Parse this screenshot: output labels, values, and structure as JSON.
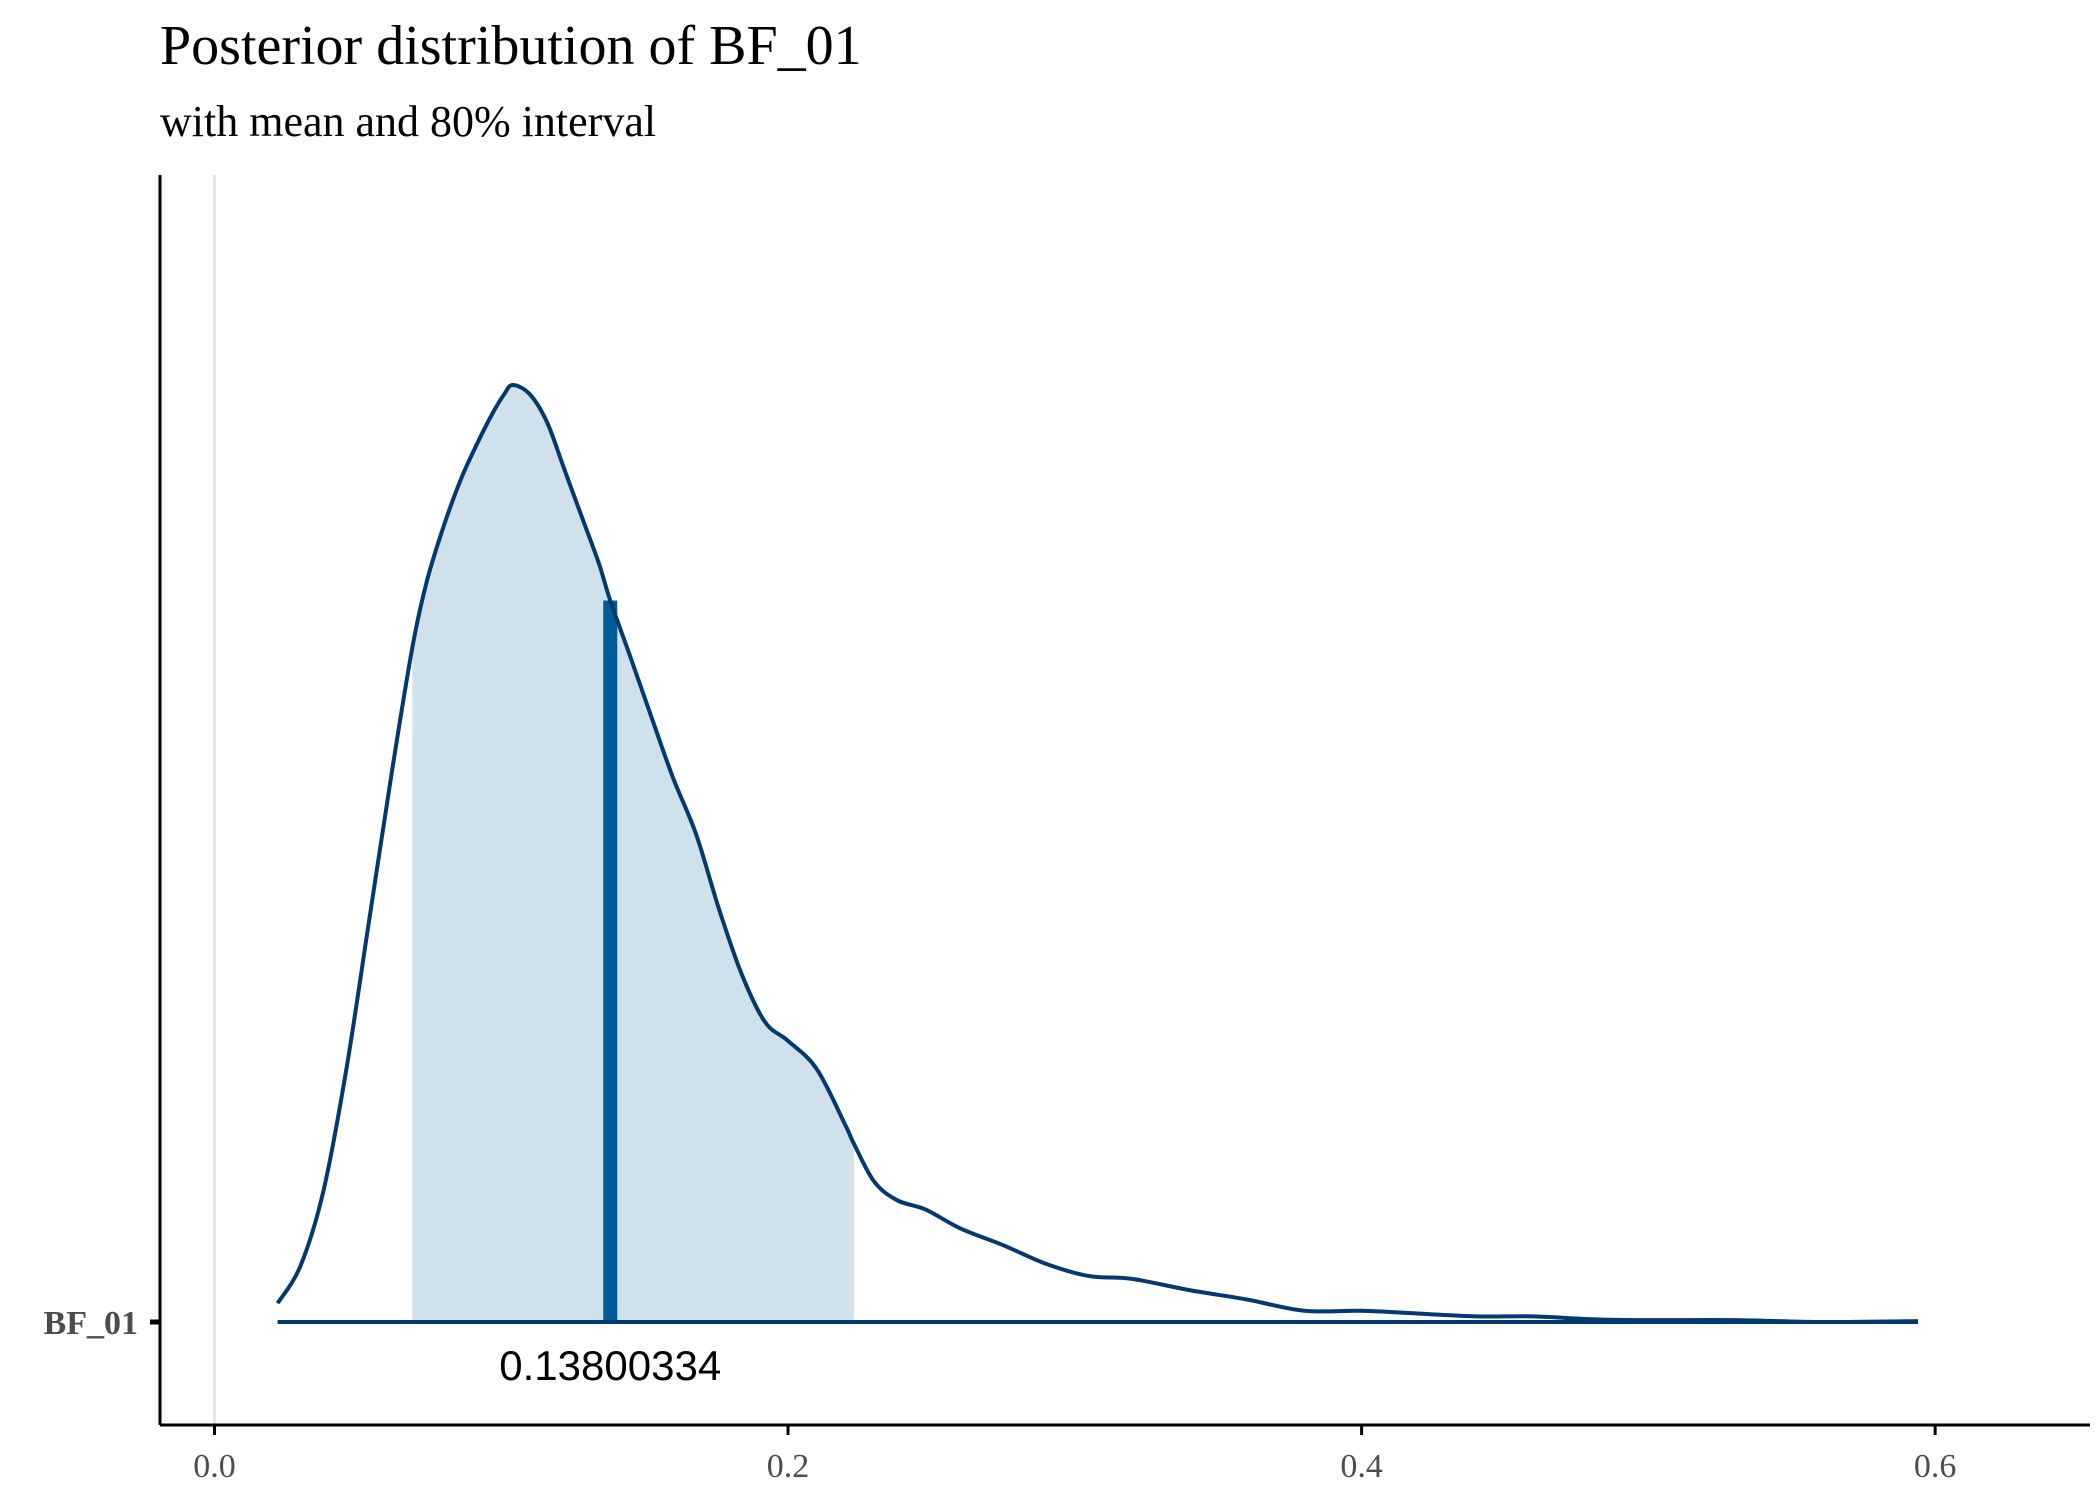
{
  "chart_data": {
    "type": "area",
    "title": "Posterior distribution of BF_01",
    "subtitle": "with mean and 80% interval",
    "xlabel": "",
    "ylabel": "",
    "x_ticks": [
      0.0,
      0.2,
      0.4,
      0.6
    ],
    "x_tick_labels": [
      "0.0",
      "0.2",
      "0.4",
      "0.6"
    ],
    "xlim": [
      -0.019,
      0.654
    ],
    "y_categories": [
      "BF_01"
    ],
    "vline_x": 0.0,
    "mean": 0.13800334,
    "mean_label": "0.13800334",
    "interval_level": 0.8,
    "interval": [
      0.069,
      0.223
    ],
    "density_range": [
      0.022,
      0.594
    ],
    "density_relative": [
      [
        0.022,
        0.02
      ],
      [
        0.03,
        0.06
      ],
      [
        0.038,
        0.14
      ],
      [
        0.046,
        0.27
      ],
      [
        0.054,
        0.43
      ],
      [
        0.062,
        0.59
      ],
      [
        0.069,
        0.72
      ],
      [
        0.074,
        0.79
      ],
      [
        0.08,
        0.85
      ],
      [
        0.086,
        0.9
      ],
      [
        0.092,
        0.94
      ],
      [
        0.097,
        0.97
      ],
      [
        0.101,
        0.99
      ],
      [
        0.104,
        1.0
      ],
      [
        0.11,
        0.99
      ],
      [
        0.116,
        0.96
      ],
      [
        0.122,
        0.91
      ],
      [
        0.128,
        0.86
      ],
      [
        0.134,
        0.81
      ],
      [
        0.138,
        0.77
      ],
      [
        0.145,
        0.71
      ],
      [
        0.153,
        0.64
      ],
      [
        0.16,
        0.58
      ],
      [
        0.168,
        0.52
      ],
      [
        0.176,
        0.44
      ],
      [
        0.184,
        0.37
      ],
      [
        0.192,
        0.32
      ],
      [
        0.2,
        0.3
      ],
      [
        0.21,
        0.27
      ],
      [
        0.22,
        0.21
      ],
      [
        0.223,
        0.19
      ],
      [
        0.23,
        0.15
      ],
      [
        0.238,
        0.13
      ],
      [
        0.248,
        0.12
      ],
      [
        0.26,
        0.1
      ],
      [
        0.275,
        0.082
      ],
      [
        0.29,
        0.062
      ],
      [
        0.305,
        0.049
      ],
      [
        0.32,
        0.046
      ],
      [
        0.34,
        0.034
      ],
      [
        0.36,
        0.024
      ],
      [
        0.38,
        0.012
      ],
      [
        0.4,
        0.012
      ],
      [
        0.42,
        0.009
      ],
      [
        0.44,
        0.006
      ],
      [
        0.46,
        0.006
      ],
      [
        0.48,
        0.003
      ],
      [
        0.5,
        0.002
      ],
      [
        0.53,
        0.002
      ],
      [
        0.56,
        0.0
      ],
      [
        0.594,
        0.001
      ]
    ],
    "colors": {
      "outline": "#03396c",
      "fill": "#d1e1ec",
      "mean_line": "#005b96",
      "zero_line": "#e6e6e6",
      "axis": "#000000"
    },
    "grid": false,
    "legend": "none"
  }
}
